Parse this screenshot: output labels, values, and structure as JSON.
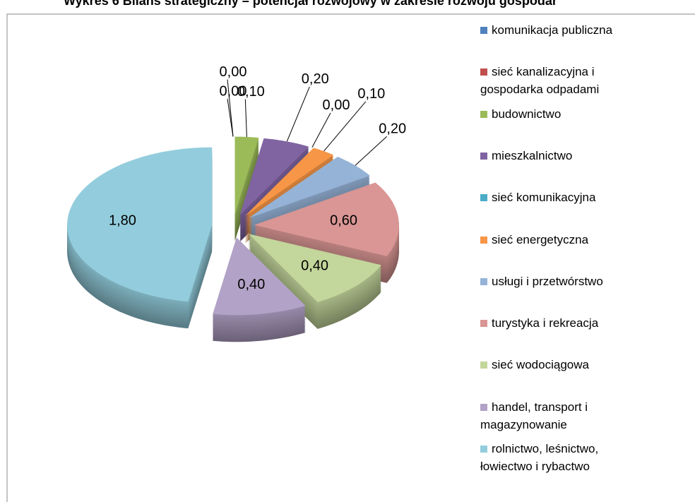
{
  "chart_data": {
    "type": "pie3d",
    "title": "Wykres 6 Bilans strategiczny – potencjał rozwojowy w zakresie rozwoju gospodar",
    "categories": [
      "komunikacja publiczna",
      "sieć kanalizacyjna i gospodarka odpadami",
      "budownictwo",
      "mieszkalnictwo",
      "sieć komunikacyjna",
      "sieć energetyczna",
      "usługi i przetwórstwo",
      "turystyka i rekreacja",
      "sieć wodociągowa",
      "handel, transport i magazynowanie",
      "rolnictwo, leśnictwo, łowiectwo i rybactwo"
    ],
    "values": [
      0,
      0,
      0.1,
      0.2,
      0,
      0.1,
      0.2,
      0.6,
      0.4,
      0.4,
      1.8
    ],
    "value_labels": [
      "0,00",
      "0,00",
      "0,10",
      "0,20",
      "0,00",
      "0,10",
      "0,20",
      "0,60",
      "0,40",
      "0,40",
      "1,80"
    ],
    "colors": [
      "#4f81bd",
      "#c0504d",
      "#9bbb59",
      "#8064a2",
      "#4bacc6",
      "#f79646",
      "#95b3d7",
      "#d99694",
      "#c3d69b",
      "#b2a2c7",
      "#93cddd"
    ],
    "legend": "right"
  }
}
